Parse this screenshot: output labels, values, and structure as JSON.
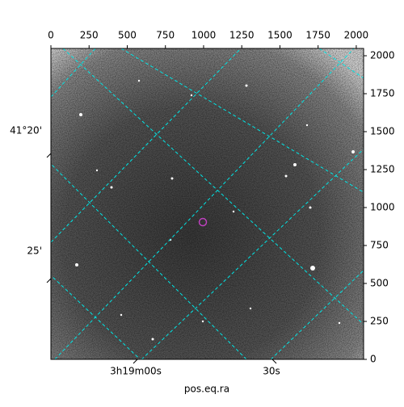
{
  "chart_data": {
    "type": "image",
    "xlabel": "pos.eq.ra",
    "xlim": [
      0,
      2048
    ],
    "xticks": [
      0,
      250,
      500,
      750,
      1000,
      1250,
      1500,
      1750,
      2000
    ],
    "ylim": [
      0,
      2048
    ],
    "yticks": [
      0,
      250,
      500,
      750,
      1000,
      1250,
      1500,
      1750,
      2000
    ],
    "ra_ticks": [
      "3h19m00s",
      "30s"
    ],
    "dec_ticks": [
      "41°20'",
      "25'"
    ],
    "marker": {
      "x": 995,
      "y": 904,
      "color": "#c040c0"
    },
    "grid_color": "#00e5e5"
  }
}
